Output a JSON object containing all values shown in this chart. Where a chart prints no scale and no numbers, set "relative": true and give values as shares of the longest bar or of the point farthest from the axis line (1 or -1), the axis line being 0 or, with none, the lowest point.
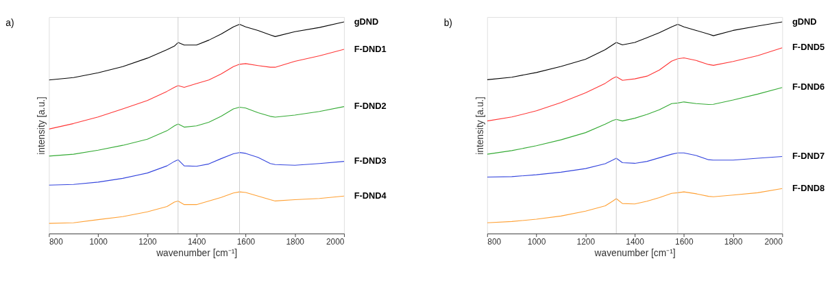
{
  "chart_data": [
    {
      "type": "line",
      "title": "a)",
      "xlabel": "wavenumber [cm⁻¹]",
      "ylabel": "intensity [a.u.]",
      "relative": true,
      "grid": false,
      "line_style": "solid",
      "marker": "none",
      "tick_labels": "x",
      "x": [
        800,
        900,
        1000,
        1100,
        1200,
        1280,
        1310,
        1325,
        1350,
        1400,
        1450,
        1500,
        1550,
        1575,
        1600,
        1650,
        1700,
        1720,
        1800,
        1900,
        2000
      ],
      "xlim": [
        800,
        2000
      ],
      "xticks": [
        800,
        1000,
        1200,
        1400,
        1600,
        1800,
        2000
      ],
      "ref_lines": [
        {
          "axis": "x",
          "value": 1325,
          "color": "#c8c8c8"
        },
        {
          "axis": "x",
          "value": 1575,
          "color": "#c8c8c8"
        }
      ],
      "series": [
        {
          "name": "gDND",
          "color": "#000000",
          "values": [
            0.726,
            0.737,
            0.76,
            0.789,
            0.829,
            0.869,
            0.886,
            0.903,
            0.891,
            0.891,
            0.914,
            0.943,
            0.977,
            0.989,
            0.977,
            0.96,
            0.939,
            0.931,
            0.954,
            0.974,
            1.0
          ]
        },
        {
          "name": "F-DND1",
          "color": "#ff3333",
          "values": [
            0.494,
            0.52,
            0.551,
            0.589,
            0.629,
            0.672,
            0.691,
            0.699,
            0.691,
            0.709,
            0.726,
            0.754,
            0.789,
            0.8,
            0.803,
            0.794,
            0.786,
            0.786,
            0.814,
            0.84,
            0.871
          ]
        },
        {
          "name": "F-DND2",
          "color": "#33aa33",
          "values": [
            0.366,
            0.375,
            0.394,
            0.417,
            0.446,
            0.486,
            0.509,
            0.518,
            0.503,
            0.509,
            0.526,
            0.554,
            0.589,
            0.597,
            0.593,
            0.571,
            0.554,
            0.55,
            0.56,
            0.577,
            0.6
          ]
        },
        {
          "name": "F-DND3",
          "color": "#3344dd",
          "values": [
            0.229,
            0.232,
            0.243,
            0.261,
            0.286,
            0.32,
            0.341,
            0.349,
            0.32,
            0.318,
            0.329,
            0.354,
            0.377,
            0.383,
            0.379,
            0.36,
            0.331,
            0.326,
            0.323,
            0.331,
            0.341
          ]
        },
        {
          "name": "F-DND4",
          "color": "#ffa033",
          "values": [
            0.048,
            0.051,
            0.066,
            0.08,
            0.103,
            0.128,
            0.149,
            0.154,
            0.137,
            0.137,
            0.154,
            0.171,
            0.192,
            0.197,
            0.194,
            0.177,
            0.16,
            0.154,
            0.16,
            0.166,
            0.177
          ]
        }
      ]
    },
    {
      "type": "line",
      "title": "b)",
      "xlabel": "wavenumber [cm⁻¹]",
      "ylabel": "intensity [a.u.]",
      "relative": true,
      "grid": false,
      "line_style": "solid",
      "marker": "none",
      "tick_labels": "x",
      "x": [
        800,
        900,
        1000,
        1100,
        1200,
        1280,
        1310,
        1325,
        1350,
        1400,
        1450,
        1500,
        1550,
        1575,
        1600,
        1650,
        1700,
        1720,
        1800,
        1900,
        2000
      ],
      "xlim": [
        800,
        2000
      ],
      "xticks": [
        800,
        1000,
        1200,
        1400,
        1600,
        1800,
        2000
      ],
      "ref_lines": [
        {
          "axis": "x",
          "value": 1325,
          "color": "#c8c8c8"
        },
        {
          "axis": "x",
          "value": 1575,
          "color": "#c8c8c8"
        }
      ],
      "series": [
        {
          "name": "gDND",
          "color": "#000000",
          "values": [
            0.727,
            0.739,
            0.761,
            0.79,
            0.824,
            0.869,
            0.892,
            0.903,
            0.892,
            0.903,
            0.926,
            0.949,
            0.977,
            0.989,
            0.977,
            0.96,
            0.943,
            0.935,
            0.96,
            0.981,
            1.0
          ]
        },
        {
          "name": "F-DND5",
          "color": "#ff3333",
          "values": [
            0.532,
            0.551,
            0.58,
            0.619,
            0.665,
            0.71,
            0.733,
            0.741,
            0.724,
            0.731,
            0.744,
            0.773,
            0.815,
            0.826,
            0.83,
            0.818,
            0.799,
            0.795,
            0.813,
            0.841,
            0.878
          ]
        },
        {
          "name": "F-DND6",
          "color": "#33aa33",
          "values": [
            0.375,
            0.392,
            0.415,
            0.443,
            0.477,
            0.517,
            0.534,
            0.54,
            0.532,
            0.545,
            0.563,
            0.585,
            0.614,
            0.617,
            0.622,
            0.614,
            0.61,
            0.611,
            0.631,
            0.659,
            0.69
          ]
        },
        {
          "name": "F-DND7",
          "color": "#3344dd",
          "values": [
            0.267,
            0.269,
            0.278,
            0.29,
            0.307,
            0.33,
            0.347,
            0.356,
            0.335,
            0.332,
            0.341,
            0.358,
            0.375,
            0.381,
            0.381,
            0.369,
            0.349,
            0.347,
            0.347,
            0.356,
            0.364
          ]
        },
        {
          "name": "F-DND8",
          "color": "#ffa033",
          "values": [
            0.051,
            0.057,
            0.068,
            0.083,
            0.106,
            0.131,
            0.153,
            0.165,
            0.142,
            0.14,
            0.153,
            0.17,
            0.19,
            0.193,
            0.197,
            0.188,
            0.176,
            0.174,
            0.182,
            0.193,
            0.213
          ]
        }
      ]
    }
  ]
}
